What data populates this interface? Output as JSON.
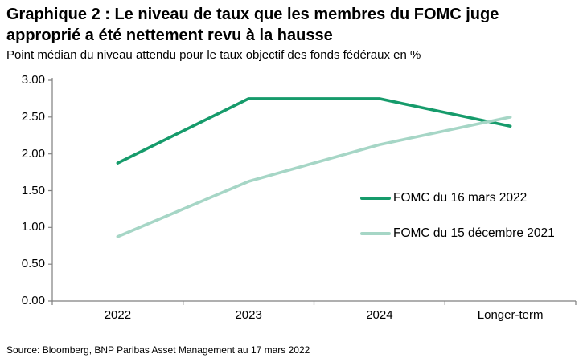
{
  "header": {
    "title": "Graphique 2 : Le niveau de taux que les membres du FOMC juge approprié a été nettement revu à la hausse",
    "subtitle": "Point médian du niveau attendu pour le taux objectif des fonds fédéraux en %"
  },
  "footer": {
    "source": "Source: Bloomberg, BNP Paribas Asset Management au 17 mars 2022"
  },
  "chart_data": {
    "type": "line",
    "title": "Graphique 2 : Le niveau de taux que les membres du FOMC juge approprié a été nettement revu à la hausse",
    "subtitle": "Point médian du niveau attendu pour le taux objectif des fonds fédéraux en %",
    "categories": [
      "2022",
      "2023",
      "2024",
      "Longer-term"
    ],
    "series": [
      {
        "name": "FOMC du 16 mars 2022",
        "color": "#169b6b",
        "values": [
          1.875,
          2.75,
          2.75,
          2.375
        ]
      },
      {
        "name": "FOMC du 15 décembre 2021",
        "color": "#a6d6c6",
        "values": [
          0.875,
          1.625,
          2.125,
          2.5
        ]
      }
    ],
    "ylim": [
      0,
      3
    ],
    "ytick_labels": [
      "3.00",
      "2.50",
      "2.00",
      "1.50",
      "1.00",
      "0.50",
      "0.00"
    ],
    "xlabel": "",
    "ylabel": "",
    "grid": false,
    "legend_position": "center-right",
    "axis_color": "#7f7f7f",
    "source": "Source: Bloomberg, BNP Paribas Asset Management au 17 mars 2022"
  }
}
